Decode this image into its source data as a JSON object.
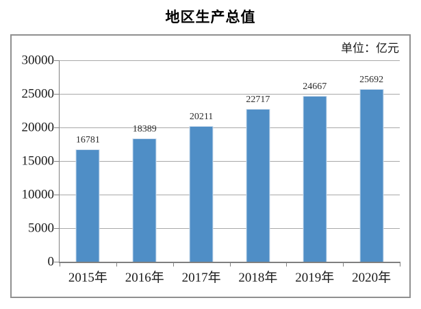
{
  "title": "地区生产总值",
  "unit_label": "单位：亿元",
  "colors": {
    "bar_fill": "#4F8EC6",
    "bar_edge": "#CDDDEE",
    "gridline": "#A8A8A8",
    "axis": "#7F7F7F",
    "frame_border": "#8F8F8F",
    "text": "#1A1A1A"
  },
  "chart_data": {
    "type": "bar",
    "title": "地区生产总值",
    "unit": "单位：亿元",
    "categories": [
      "2015年",
      "2016年",
      "2017年",
      "2018年",
      "2019年",
      "2020年"
    ],
    "values": [
      16781,
      18389,
      20211,
      22717,
      24667,
      25692
    ],
    "data_labels": [
      "16781",
      "18389",
      "20211",
      "22717",
      "24667",
      "25692"
    ],
    "xlabel": "",
    "ylabel": "",
    "ylim": [
      0,
      30000
    ],
    "ytick_step": 5000,
    "yticks": [
      "0",
      "5000",
      "10000",
      "15000",
      "20000",
      "25000",
      "30000"
    ],
    "grid": true,
    "legend": null,
    "legend_position": "none",
    "bar_color": "#4F8EC6"
  }
}
